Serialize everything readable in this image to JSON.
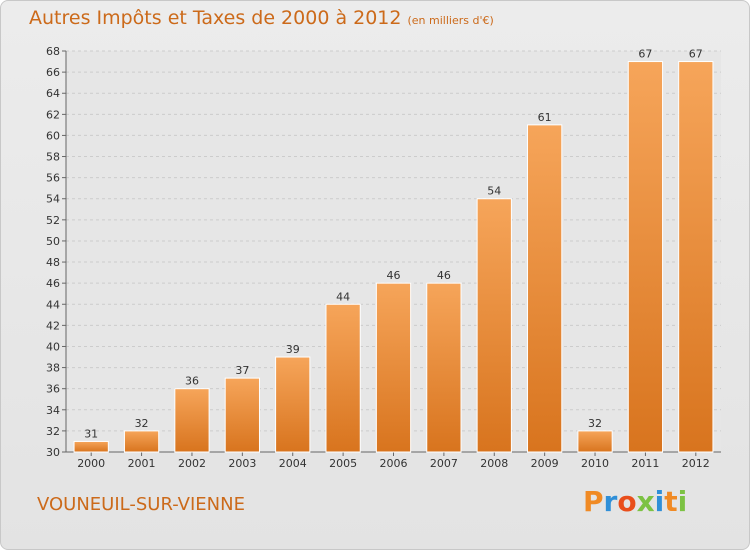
{
  "header": {
    "title": "Autres Impôts et Taxes de 2000 à 2012",
    "subtitle": "(en milliers d'€)"
  },
  "footer": {
    "city": "VOUNEUIL-SUR-VIENNE",
    "logo_letters": [
      "P",
      "r",
      "o",
      "x",
      "i",
      "t",
      "i"
    ],
    "logo_colors": [
      "#f08a24",
      "#2f8fd8",
      "#e94e1b",
      "#7cc243",
      "#2f8fd8",
      "#f08a24",
      "#7cc243"
    ]
  },
  "colors": {
    "bar_top": "#f6a55a",
    "bar_bottom": "#d8741e",
    "title": "#cc6a1a",
    "grid": "#cccccc"
  },
  "chart_data": {
    "type": "bar",
    "title": "Autres Impôts et Taxes de 2000 à 2012",
    "subtitle": "(en milliers d'€)",
    "xlabel": "",
    "ylabel": "",
    "categories": [
      "2000",
      "2001",
      "2002",
      "2003",
      "2004",
      "2005",
      "2006",
      "2007",
      "2008",
      "2009",
      "2010",
      "2011",
      "2012"
    ],
    "values": [
      31,
      32,
      36,
      37,
      39,
      44,
      46,
      46,
      54,
      61,
      32,
      67,
      67
    ],
    "ylim": [
      30,
      68
    ],
    "yticks": [
      30,
      32,
      34,
      36,
      38,
      40,
      42,
      44,
      46,
      48,
      50,
      52,
      54,
      56,
      58,
      60,
      62,
      64,
      66,
      68
    ],
    "grid": true,
    "legend": "none"
  }
}
